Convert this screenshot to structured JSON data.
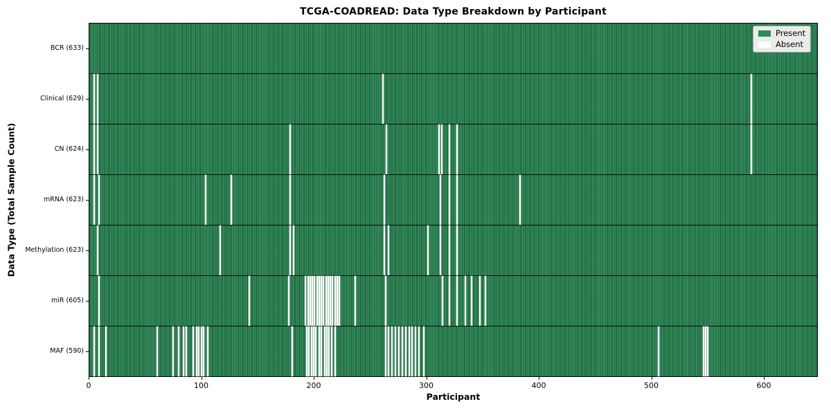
{
  "title": "TCGA-COADREAD: Data Type Breakdown by Participant",
  "xlabel": "Participant",
  "ylabel": "Data Type (Total Sample Count)",
  "legend": {
    "position": "upper right",
    "entries": [
      {
        "label": "Present",
        "color": "#2E8B57"
      },
      {
        "label": "Absent",
        "color": "#FFFFFF"
      }
    ]
  },
  "colors": {
    "present": "#2E8B57",
    "absent": "#FFFFFF",
    "row_divider": "#0a0a0a",
    "frame": "#000000"
  },
  "chart_data": {
    "type": "heatmap",
    "title": "TCGA-COADREAD: Data Type Breakdown by Participant",
    "xlabel": "Participant",
    "ylabel": "Data Type (Total Sample Count)",
    "x_ticks": [
      0,
      100,
      200,
      300,
      400,
      500,
      600
    ],
    "xlim": [
      0,
      648
    ],
    "n_participants": 633,
    "grid": false,
    "legend_position": "upper right",
    "rows": [
      {
        "label": "BCR (633)",
        "data_type": "BCR",
        "present_count": 633,
        "absent_participants": []
      },
      {
        "label": "Clinical (629)",
        "data_type": "Clinical",
        "present_count": 629,
        "absent_participants": [
          4,
          7,
          261,
          589
        ]
      },
      {
        "label": "CN (624)",
        "data_type": "CN",
        "present_count": 624,
        "absent_participants": [
          4,
          7,
          178,
          264,
          311,
          313,
          320,
          327,
          589
        ]
      },
      {
        "label": "mRNA (623)",
        "data_type": "mRNA",
        "present_count": 623,
        "absent_participants": [
          4,
          8,
          103,
          126,
          178,
          262,
          312,
          320,
          327,
          383
        ]
      },
      {
        "label": "Methylation (623)",
        "data_type": "Methylation",
        "present_count": 623,
        "absent_participants": [
          7,
          116,
          178,
          181,
          262,
          266,
          301,
          312,
          320,
          327
        ]
      },
      {
        "label": "miR (605)",
        "data_type": "miR",
        "present_count": 605,
        "absent_participants": [
          8,
          142,
          177,
          192,
          194,
          196,
          198,
          200,
          202,
          204,
          206,
          208,
          210,
          212,
          214,
          216,
          218,
          220,
          222,
          236,
          263,
          314,
          320,
          327,
          334,
          340,
          347,
          352
        ]
      },
      {
        "label": "MAF (590)",
        "data_type": "MAF",
        "present_count": 590,
        "absent_participants": [
          4,
          8,
          14,
          60,
          74,
          79,
          83,
          86,
          92,
          95,
          97,
          99,
          101,
          105,
          180,
          193,
          195,
          197,
          199,
          201,
          204,
          206,
          209,
          211,
          213,
          215,
          218,
          263,
          266,
          269,
          272,
          275,
          278,
          281,
          284,
          287,
          290,
          293,
          297,
          506,
          546,
          548,
          550
        ]
      }
    ]
  }
}
